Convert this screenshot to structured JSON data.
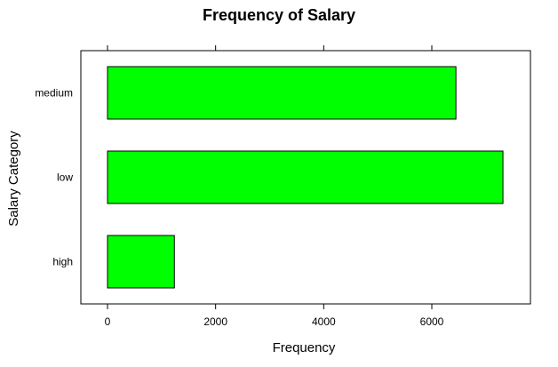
{
  "chart_data": {
    "type": "bar",
    "orientation": "horizontal",
    "title": "Frequency of Salary",
    "xlabel": "Frequency",
    "ylabel": "Salary Category",
    "categories": [
      "high",
      "low",
      "medium"
    ],
    "values": [
      1237,
      7316,
      6446
    ],
    "xlim": [
      0,
      8000
    ],
    "xticks": [
      0,
      2000,
      4000,
      6000
    ],
    "bar_color": "#00ff00",
    "bar_edge_color": "#000000",
    "grid": false,
    "legend": "none"
  }
}
